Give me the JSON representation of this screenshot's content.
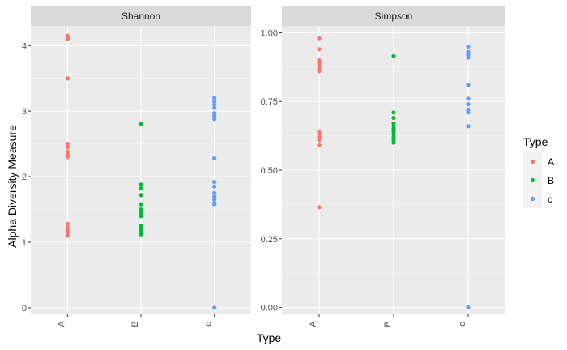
{
  "chart_data": {
    "type": "scatter",
    "xlabel": "Type",
    "ylabel": "Alpha Diversity Measure",
    "categories": [
      "A",
      "B",
      "c"
    ],
    "legend": {
      "title": "Type",
      "position": "right",
      "entries": [
        {
          "label": "A",
          "color": "#F8766D"
        },
        {
          "label": "B",
          "color": "#00BA38"
        },
        {
          "label": "c",
          "color": "#619CFF"
        }
      ]
    },
    "grid": true,
    "panels": [
      {
        "title": "Shannon",
        "ylim": [
          -0.1,
          4.3
        ],
        "yticks": [
          0,
          1,
          2,
          3,
          4
        ],
        "ytick_labels": [
          "0",
          "1",
          "2",
          "3",
          "4"
        ],
        "series": [
          {
            "category": "A",
            "values": [
              4.15,
              4.12,
              4.1,
              3.5,
              2.5,
              2.45,
              2.38,
              2.33,
              2.3,
              1.28,
              1.22,
              1.18,
              1.15,
              1.1
            ]
          },
          {
            "category": "B",
            "values": [
              2.8,
              1.88,
              1.82,
              1.72,
              1.58,
              1.5,
              1.45,
              1.4,
              1.25,
              1.2,
              1.17,
              1.14,
              1.12
            ]
          },
          {
            "category": "c",
            "values": [
              3.2,
              3.15,
              3.1,
              3.05,
              2.97,
              2.93,
              2.88,
              2.28,
              1.92,
              1.85,
              1.75,
              1.7,
              1.65,
              1.6,
              1.58,
              0.0
            ]
          }
        ]
      },
      {
        "title": "Simpson",
        "ylim": [
          -0.025,
          1.025
        ],
        "yticks": [
          0,
          0.25,
          0.5,
          0.75,
          1.0
        ],
        "ytick_labels": [
          "0.00",
          "0.25",
          "0.50",
          "0.75",
          "1.00"
        ],
        "series": [
          {
            "category": "A",
            "values": [
              0.98,
              0.94,
              0.9,
              0.89,
              0.88,
              0.87,
              0.86,
              0.64,
              0.63,
              0.62,
              0.61,
              0.59,
              0.365
            ]
          },
          {
            "category": "B",
            "values": [
              0.915,
              0.71,
              0.69,
              0.67,
              0.66,
              0.65,
              0.64,
              0.63,
              0.62,
              0.61,
              0.6
            ]
          },
          {
            "category": "c",
            "values": [
              0.95,
              0.93,
              0.92,
              0.91,
              0.81,
              0.76,
              0.74,
              0.72,
              0.71,
              0.66,
              0.0
            ]
          }
        ]
      }
    ]
  }
}
